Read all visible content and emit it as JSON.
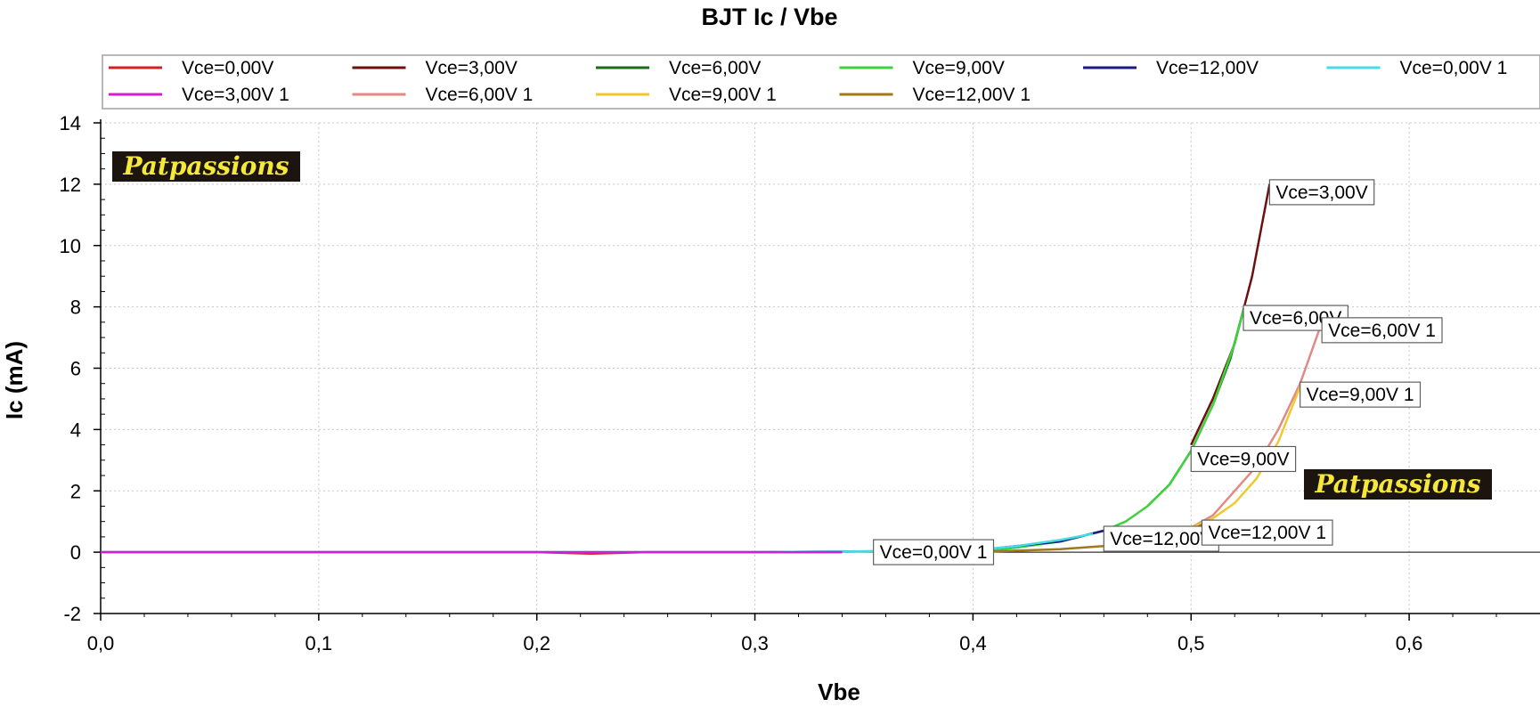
{
  "chart_data": {
    "type": "line",
    "title": "BJT Ic / Vbe",
    "xlabel": "Vbe",
    "ylabel": "Ic (mA)",
    "xlim": [
      0,
      0.66
    ],
    "ylim": [
      -2,
      14
    ],
    "x_ticks": [
      "0,0",
      "0,1",
      "0,2",
      "0,3",
      "0,4",
      "0,5",
      "0,6"
    ],
    "y_ticks": [
      "-2",
      "0",
      "2",
      "4",
      "6",
      "8",
      "10",
      "12",
      "14"
    ],
    "grid": true,
    "legend_position": "top",
    "series": [
      {
        "name": "Vce=0,00V",
        "color": "#d42020",
        "x": [
          0,
          0.1,
          0.2,
          0.225,
          0.25,
          0.3,
          0.34
        ],
        "y": [
          0,
          0,
          0,
          -0.05,
          0,
          0,
          0
        ]
      },
      {
        "name": "Vce=3,00V",
        "color": "#6b0f0f",
        "x": [
          0.5,
          0.51,
          0.52,
          0.528,
          0.536
        ],
        "y": [
          3.5,
          5.0,
          6.8,
          9.0,
          12.0
        ]
      },
      {
        "name": "Vce=6,00V",
        "color": "#1a6e1a",
        "x": [
          0.48,
          0.49,
          0.5,
          0.51,
          0.518,
          0.524
        ],
        "y": [
          1.5,
          2.2,
          3.3,
          4.8,
          6.3,
          7.9
        ]
      },
      {
        "name": "Vce=9,00V",
        "color": "#3ed23e",
        "x": [
          0.4,
          0.42,
          0.44,
          0.46,
          0.47,
          0.48,
          0.49,
          0.5,
          0.51,
          0.52,
          0.524
        ],
        "y": [
          0,
          0.15,
          0.35,
          0.7,
          1.0,
          1.5,
          2.2,
          3.3,
          4.8,
          6.8,
          7.9
        ]
      },
      {
        "name": "Vce=12,00V",
        "color": "#1a1a80",
        "x": [
          0,
          0.1,
          0.2,
          0.3,
          0.4,
          0.42,
          0.44,
          0.46
        ],
        "y": [
          0,
          0,
          0,
          0,
          0.05,
          0.2,
          0.35,
          0.7
        ]
      },
      {
        "name": "Vce=0,00V 1",
        "color": "#46dce6",
        "x": [
          0,
          0.1,
          0.2,
          0.3,
          0.4,
          0.42,
          0.44,
          0.455
        ],
        "y": [
          0,
          0,
          0,
          0,
          0.05,
          0.2,
          0.4,
          0.6
        ]
      },
      {
        "name": "Vce=3,00V 1",
        "color": "#d020d0",
        "x": [
          0,
          0.1,
          0.2,
          0.3,
          0.34
        ],
        "y": [
          0,
          0,
          0,
          0,
          0
        ]
      },
      {
        "name": "Vce=6,00V 1",
        "color": "#e08a84",
        "x": [
          0.5,
          0.51,
          0.52,
          0.53,
          0.54,
          0.55,
          0.56
        ],
        "y": [
          0.8,
          1.2,
          2.0,
          2.8,
          4.0,
          5.5,
          7.5
        ]
      },
      {
        "name": "Vce=9,00V 1",
        "color": "#f0c830",
        "x": [
          0.5,
          0.51,
          0.52,
          0.53,
          0.54,
          0.55
        ],
        "y": [
          0.8,
          1.1,
          1.6,
          2.4,
          3.6,
          5.4
        ]
      },
      {
        "name": "Vce=12,00V 1",
        "color": "#a07818",
        "x": [
          0.4,
          0.44,
          0.46,
          0.48,
          0.5,
          0.505
        ],
        "y": [
          0,
          0.1,
          0.2,
          0.4,
          0.7,
          0.9
        ]
      }
    ],
    "annotations": [
      {
        "text": "Vce=3,00V",
        "x": 0.536,
        "y": 12.0
      },
      {
        "text": "Vce=6,00V",
        "x": 0.524,
        "y": 7.9
      },
      {
        "text": "Vce=6,00V 1",
        "x": 0.56,
        "y": 7.5
      },
      {
        "text": "Vce=9,00V 1",
        "x": 0.55,
        "y": 5.4
      },
      {
        "text": "Vce=9,00V",
        "x": 0.5,
        "y": 3.3
      },
      {
        "text": "Vce=12,00V",
        "x": 0.46,
        "y": 0.7
      },
      {
        "text": "Vce=12,00V 1",
        "x": 0.505,
        "y": 0.9
      },
      {
        "text": "Vce=0,00V 1",
        "x": 0.34,
        "y": 0.0
      }
    ]
  },
  "watermark": {
    "text": "Patpassions",
    "bg": "#1c140e",
    "fg": "#f5e83a"
  }
}
